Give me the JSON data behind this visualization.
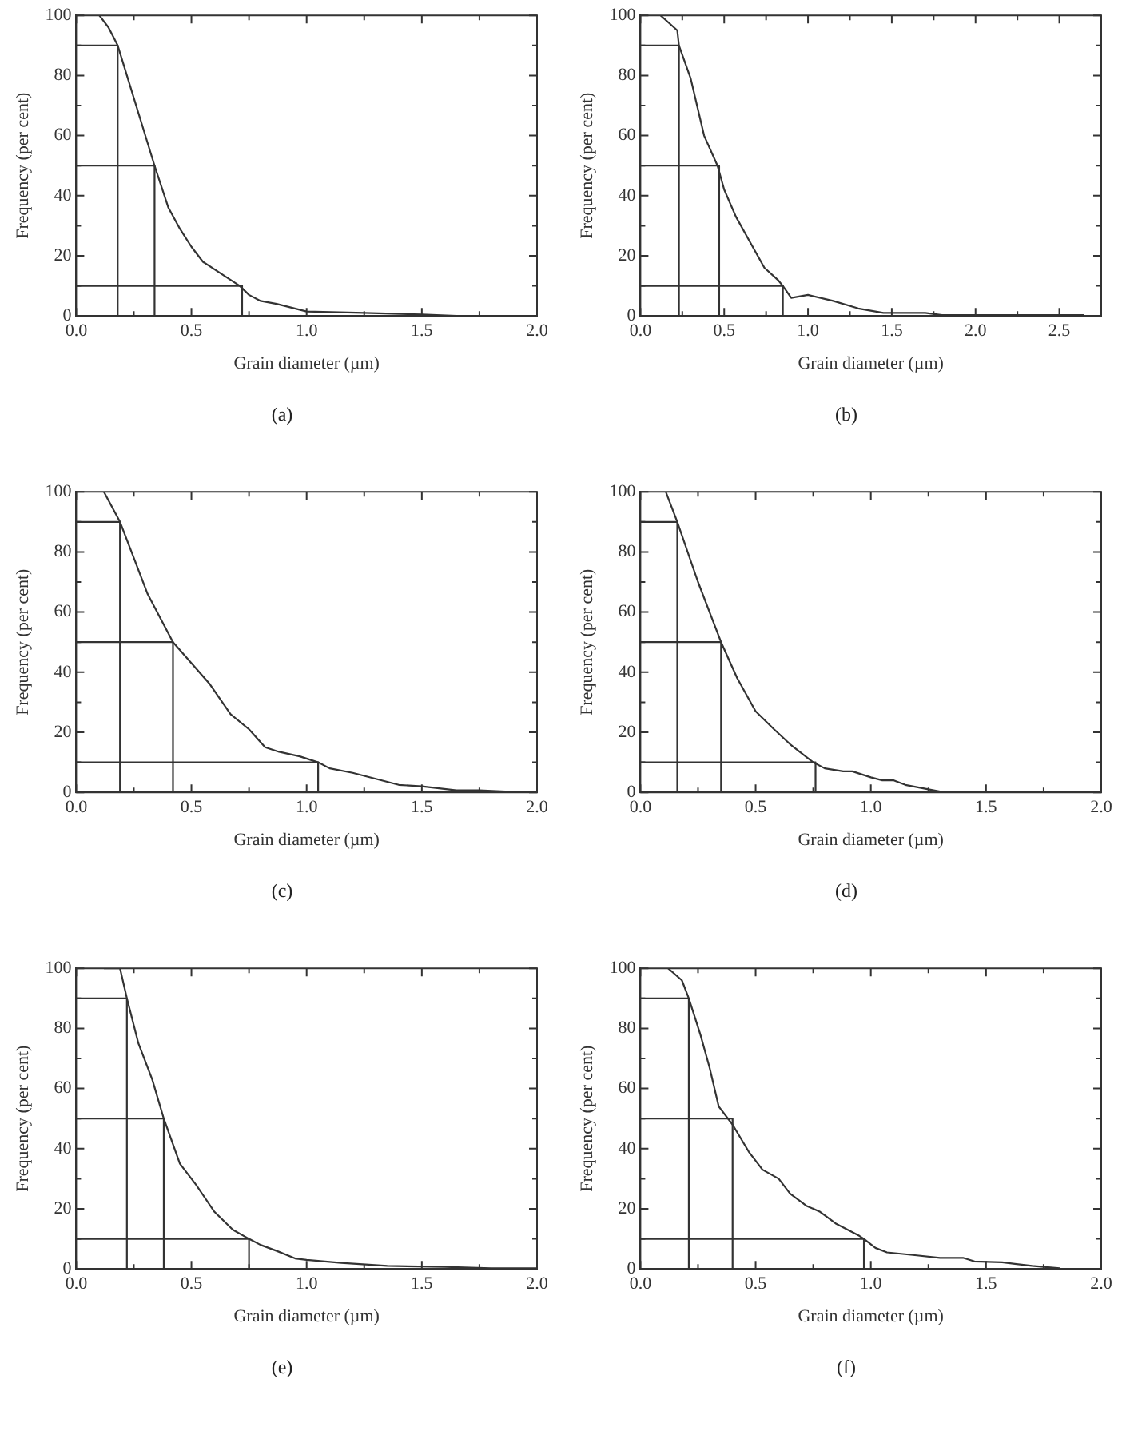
{
  "chart_data": [
    {
      "type": "line",
      "xlabel": "Grain diameter (µm)",
      "ylabel": "Frequency (per cent)",
      "annotations": [
        "(a)"
      ],
      "xlim": [
        0,
        2
      ],
      "xticks": [
        {
          "value": 0,
          "label": "0.0"
        },
        {
          "value": 0.25,
          "label": null
        },
        {
          "value": 0.5,
          "label": "0.5"
        },
        {
          "value": 0.75,
          "label": null
        },
        {
          "value": 1,
          "label": "1.0"
        },
        {
          "value": 1.25,
          "label": null
        },
        {
          "value": 1.5,
          "label": "1.5"
        },
        {
          "value": 1.75,
          "label": null
        },
        {
          "value": 2,
          "label": "2.0"
        }
      ],
      "ylim": [
        0,
        100
      ],
      "yticks": [
        0,
        {
          "value": 10,
          "label": null
        },
        20,
        {
          "value": 30,
          "label": null
        },
        40,
        {
          "value": 50,
          "label": null
        },
        60,
        {
          "value": 70,
          "label": null
        },
        80,
        {
          "value": 90,
          "label": null
        },
        100
      ],
      "series": [
        {
          "color": "#333333",
          "x": [
            0.1,
            0.14,
            0.18,
            0.22,
            0.28,
            0.34,
            0.4,
            0.45,
            0.5,
            0.55,
            0.65,
            0.71,
            0.75,
            0.8,
            0.87,
            1.0,
            1.25,
            1.5,
            1.65,
            2.0
          ],
          "values": [
            100,
            96,
            90,
            80,
            65,
            50,
            36,
            29,
            23,
            18,
            13,
            10,
            7,
            5,
            4,
            1.5,
            1,
            0.5,
            0,
            0
          ]
        },
        {
          "color": "#333333",
          "x": [
            0,
            0.18,
            0.18
          ],
          "values": [
            90,
            90,
            0
          ]
        },
        {
          "color": "#333333",
          "x": [
            0,
            0.34,
            0.34
          ],
          "values": [
            50,
            50,
            0
          ]
        },
        {
          "color": "#333333",
          "x": [
            0,
            0.72,
            0.72
          ],
          "values": [
            10,
            10,
            0
          ]
        }
      ]
    },
    {
      "type": "line",
      "xlabel": "Grain diameter (µm)",
      "ylabel": "Frequency (per cent)",
      "annotations": [
        "(b)"
      ],
      "xlim": [
        0,
        2.75
      ],
      "xticks": [
        {
          "value": 0,
          "label": "0.0"
        },
        {
          "value": 0.25,
          "label": null
        },
        {
          "value": 0.5,
          "label": "0.5"
        },
        {
          "value": 0.75,
          "label": null
        },
        {
          "value": 1,
          "label": "1.0"
        },
        {
          "value": 1.25,
          "label": null
        },
        {
          "value": 1.5,
          "label": "1.5"
        },
        {
          "value": 1.75,
          "label": null
        },
        {
          "value": 2,
          "label": "2.0"
        },
        {
          "value": 2.25,
          "label": null
        },
        {
          "value": 2.5,
          "label": "2.5"
        }
      ],
      "ylim": [
        0,
        100
      ],
      "yticks": [
        0,
        {
          "value": 10,
          "label": null
        },
        20,
        {
          "value": 30,
          "label": null
        },
        40,
        {
          "value": 50,
          "label": null
        },
        60,
        {
          "value": 70,
          "label": null
        },
        80,
        {
          "value": 90,
          "label": null
        },
        100
      ],
      "series": [
        {
          "color": "#333333",
          "x": [
            0.12,
            0.22,
            0.23,
            0.3,
            0.38,
            0.46,
            0.5,
            0.57,
            0.65,
            0.74,
            0.82,
            0.85,
            0.9,
            1.0,
            1.15,
            1.3,
            1.45,
            1.7,
            1.8,
            2.65
          ],
          "values": [
            100,
            95,
            90,
            79,
            60,
            50,
            42,
            33,
            25,
            16,
            12,
            10,
            6,
            7,
            5,
            2.5,
            1,
            1,
            0.3,
            0.3
          ]
        },
        {
          "color": "#333333",
          "x": [
            0,
            0.23,
            0.23
          ],
          "values": [
            90,
            90,
            0
          ]
        },
        {
          "color": "#333333",
          "x": [
            0,
            0.47,
            0.47
          ],
          "values": [
            50,
            50,
            0
          ]
        },
        {
          "color": "#333333",
          "x": [
            0,
            0.85,
            0.85
          ],
          "values": [
            10,
            10,
            0
          ]
        }
      ]
    },
    {
      "type": "line",
      "xlabel": "Grain diameter (µm)",
      "ylabel": "Frequency (per cent)",
      "annotations": [
        "(c)"
      ],
      "xlim": [
        0,
        2
      ],
      "xticks": [
        {
          "value": 0,
          "label": "0.0"
        },
        {
          "value": 0.25,
          "label": null
        },
        {
          "value": 0.5,
          "label": "0.5"
        },
        {
          "value": 0.75,
          "label": null
        },
        {
          "value": 1,
          "label": "1.0"
        },
        {
          "value": 1.25,
          "label": null
        },
        {
          "value": 1.5,
          "label": "1.5"
        },
        {
          "value": 1.75,
          "label": null
        },
        {
          "value": 2,
          "label": "2.0"
        }
      ],
      "ylim": [
        0,
        100
      ],
      "yticks": [
        0,
        {
          "value": 10,
          "label": null
        },
        20,
        {
          "value": 30,
          "label": null
        },
        40,
        {
          "value": 50,
          "label": null
        },
        60,
        {
          "value": 70,
          "label": null
        },
        80,
        {
          "value": 90,
          "label": null
        },
        100
      ],
      "series": [
        {
          "color": "#333333",
          "x": [
            0.12,
            0.19,
            0.25,
            0.31,
            0.42,
            0.5,
            0.58,
            0.67,
            0.75,
            0.82,
            0.88,
            0.97,
            1.05,
            1.1,
            1.2,
            1.3,
            1.4,
            1.5,
            1.65,
            1.75,
            1.88
          ],
          "values": [
            100,
            90,
            78,
            66,
            50,
            43,
            36,
            26,
            21,
            15,
            13.5,
            12,
            10,
            8,
            6.5,
            4.5,
            2.5,
            2,
            0.7,
            0.7,
            0.2
          ]
        },
        {
          "color": "#333333",
          "x": [
            0,
            0.19,
            0.19
          ],
          "values": [
            90,
            90,
            0
          ]
        },
        {
          "color": "#333333",
          "x": [
            0,
            0.42,
            0.42
          ],
          "values": [
            50,
            50,
            0
          ]
        },
        {
          "color": "#333333",
          "x": [
            0,
            1.05,
            1.05
          ],
          "values": [
            10,
            10,
            0
          ]
        }
      ]
    },
    {
      "type": "line",
      "xlabel": "Grain diameter (µm)",
      "ylabel": "Frequency (per cent)",
      "annotations": [
        "(d)"
      ],
      "xlim": [
        0,
        2
      ],
      "xticks": [
        {
          "value": 0,
          "label": "0.0"
        },
        {
          "value": 0.25,
          "label": null
        },
        {
          "value": 0.5,
          "label": "0.5"
        },
        {
          "value": 0.75,
          "label": null
        },
        {
          "value": 1,
          "label": "1.0"
        },
        {
          "value": 1.25,
          "label": null
        },
        {
          "value": 1.5,
          "label": "1.5"
        },
        {
          "value": 1.75,
          "label": null
        },
        {
          "value": 2,
          "label": "2.0"
        }
      ],
      "ylim": [
        0,
        100
      ],
      "yticks": [
        0,
        {
          "value": 10,
          "label": null
        },
        20,
        {
          "value": 30,
          "label": null
        },
        40,
        {
          "value": 50,
          "label": null
        },
        60,
        {
          "value": 70,
          "label": null
        },
        80,
        {
          "value": 90,
          "label": null
        },
        100
      ],
      "series": [
        {
          "color": "#333333",
          "x": [
            0.11,
            0.16,
            0.25,
            0.35,
            0.42,
            0.5,
            0.58,
            0.65,
            0.75,
            0.8,
            0.88,
            0.92,
            1.0,
            1.05,
            1.1,
            1.15,
            1.25,
            1.3,
            1.5
          ],
          "values": [
            100,
            90,
            70,
            50,
            38,
            27,
            21,
            16,
            10,
            8,
            7,
            7,
            5,
            4,
            4,
            2.5,
            1,
            0.3,
            0.3
          ]
        },
        {
          "color": "#333333",
          "x": [
            0,
            0.16,
            0.16
          ],
          "values": [
            90,
            90,
            0
          ]
        },
        {
          "color": "#333333",
          "x": [
            0,
            0.35,
            0.35
          ],
          "values": [
            50,
            50,
            0
          ]
        },
        {
          "color": "#333333",
          "x": [
            0,
            0.76,
            0.76
          ],
          "values": [
            10,
            10,
            0
          ]
        }
      ]
    },
    {
      "type": "line",
      "xlabel": "Grain diameter (µm)",
      "ylabel": "Frequency (per cent)",
      "annotations": [
        "(e)"
      ],
      "xlim": [
        0,
        2
      ],
      "xticks": [
        {
          "value": 0,
          "label": "0.0"
        },
        {
          "value": 0.25,
          "label": null
        },
        {
          "value": 0.5,
          "label": "0.5"
        },
        {
          "value": 0.75,
          "label": null
        },
        {
          "value": 1,
          "label": "1.0"
        },
        {
          "value": 1.25,
          "label": null
        },
        {
          "value": 1.5,
          "label": "1.5"
        },
        {
          "value": 1.75,
          "label": null
        },
        {
          "value": 2,
          "label": "2.0"
        }
      ],
      "ylim": [
        0,
        100
      ],
      "yticks": [
        0,
        {
          "value": 10,
          "label": null
        },
        20,
        {
          "value": 30,
          "label": null
        },
        40,
        {
          "value": 50,
          "label": null
        },
        60,
        {
          "value": 70,
          "label": null
        },
        80,
        {
          "value": 90,
          "label": null
        },
        100
      ],
      "series": [
        {
          "color": "#333333",
          "x": [
            0.12,
            0.19,
            0.22,
            0.27,
            0.33,
            0.38,
            0.45,
            0.52,
            0.6,
            0.68,
            0.75,
            0.8,
            0.87,
            0.95,
            1.0,
            1.15,
            1.35,
            1.6,
            1.8,
            2.0
          ],
          "values": [
            100,
            100,
            90,
            75,
            63,
            50,
            35,
            28,
            19,
            13,
            10,
            8,
            6,
            3.5,
            3,
            2,
            1,
            0.7,
            0.2,
            0.2
          ]
        },
        {
          "color": "#333333",
          "x": [
            0,
            0.22,
            0.22
          ],
          "values": [
            90,
            90,
            0
          ]
        },
        {
          "color": "#333333",
          "x": [
            0,
            0.38,
            0.38
          ],
          "values": [
            50,
            50,
            0
          ]
        },
        {
          "color": "#333333",
          "x": [
            0,
            0.75,
            0.75
          ],
          "values": [
            10,
            10,
            0
          ]
        }
      ]
    },
    {
      "type": "line",
      "xlabel": "Grain diameter (µm)",
      "ylabel": "Frequency (per cent)",
      "annotations": [
        "(f)"
      ],
      "xlim": [
        0,
        2
      ],
      "xticks": [
        {
          "value": 0,
          "label": "0.0"
        },
        {
          "value": 0.25,
          "label": null
        },
        {
          "value": 0.5,
          "label": "0.5"
        },
        {
          "value": 0.75,
          "label": null
        },
        {
          "value": 1,
          "label": "1.0"
        },
        {
          "value": 1.25,
          "label": null
        },
        {
          "value": 1.5,
          "label": "1.5"
        },
        {
          "value": 1.75,
          "label": null
        },
        {
          "value": 2,
          "label": "2.0"
        }
      ],
      "ylim": [
        0,
        100
      ],
      "yticks": [
        0,
        {
          "value": 10,
          "label": null
        },
        20,
        {
          "value": 30,
          "label": null
        },
        40,
        {
          "value": 50,
          "label": null
        },
        60,
        {
          "value": 70,
          "label": null
        },
        80,
        {
          "value": 90,
          "label": null
        },
        100
      ],
      "series": [
        {
          "color": "#333333",
          "x": [
            0.12,
            0.18,
            0.21,
            0.26,
            0.3,
            0.34,
            0.4,
            0.47,
            0.53,
            0.6,
            0.65,
            0.72,
            0.78,
            0.85,
            0.95,
            0.97,
            1.02,
            1.07,
            1.2,
            1.3,
            1.4,
            1.45,
            1.57,
            1.7,
            1.82
          ],
          "values": [
            100,
            96,
            90,
            78,
            67,
            54,
            48,
            39,
            33,
            30,
            25,
            21,
            19,
            15,
            11,
            10,
            7,
            5.5,
            4.5,
            3.7,
            3.7,
            2.5,
            2.2,
            1,
            0.2
          ]
        },
        {
          "color": "#333333",
          "x": [
            0,
            0.21,
            0.21
          ],
          "values": [
            90,
            90,
            0
          ]
        },
        {
          "color": "#333333",
          "x": [
            0,
            0.4,
            0.4
          ],
          "values": [
            50,
            50,
            0
          ]
        },
        {
          "color": "#333333",
          "x": [
            0,
            0.97,
            0.97
          ],
          "values": [
            10,
            10,
            0
          ]
        }
      ]
    }
  ]
}
